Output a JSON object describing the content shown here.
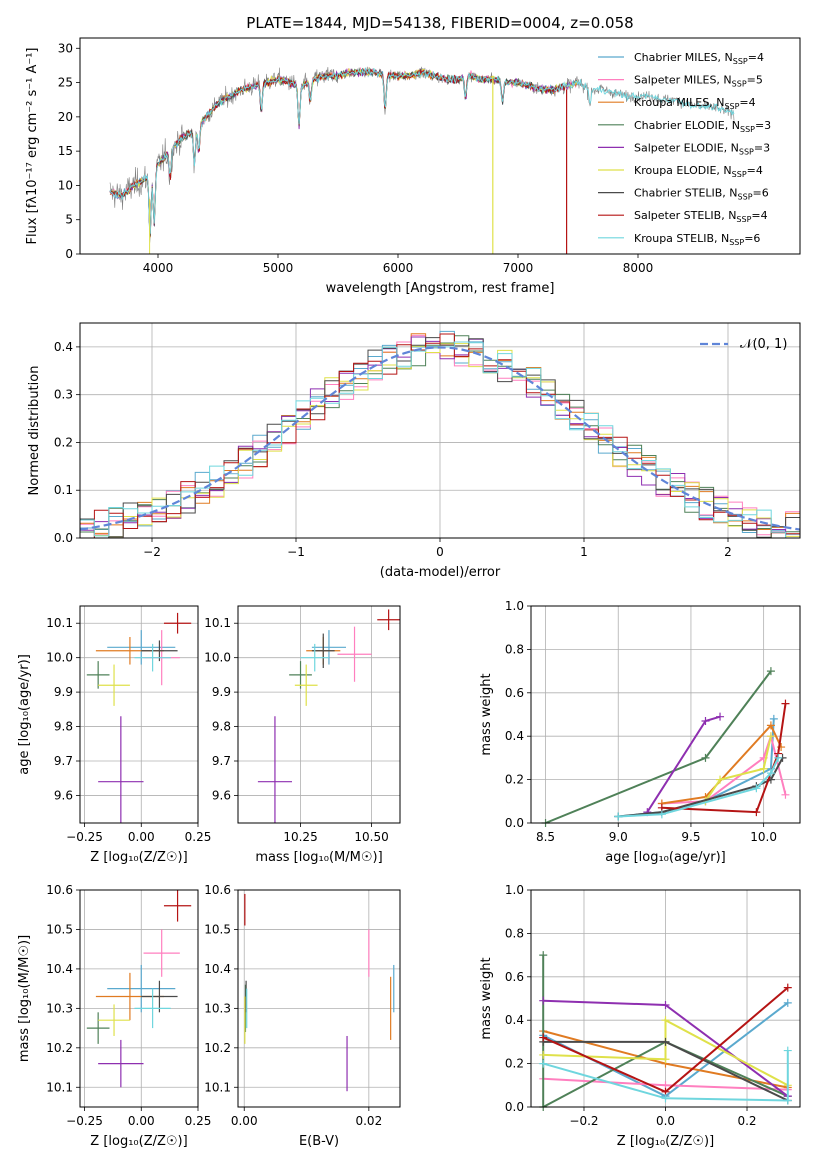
{
  "colors": {
    "chabrier_miles": "#5aa9ce",
    "salpeter_miles": "#ff7fbf",
    "kroupa_miles": "#e07b22",
    "chabrier_elodie": "#4f8158",
    "salpeter_elodie": "#8e2fb0",
    "kroupa_elodie": "#dfe14a",
    "chabrier_stelib": "#4a4a4a",
    "salpeter_stelib": "#b51414",
    "kroupa_stelib": "#6fd6de",
    "spectrum_grey": "#808080",
    "normal_curve": "#5f85d8",
    "grid": "#b0b0b0"
  },
  "chart_data": [
    {
      "id": "spectrum",
      "type": "line",
      "title": "PLATE=1844, MJD=54138, FIBERID=0004, z=0.058",
      "xlabel": "wavelength [Angstrom, rest frame]",
      "ylabel": "Flux [fλ10⁻¹⁷ erg cm⁻² s⁻¹ A⁻¹]",
      "xlim": [
        3350,
        9350
      ],
      "ylim": [
        0,
        31.5
      ],
      "xticks": [
        "4000",
        "5000",
        "6000",
        "7000",
        "8000"
      ],
      "yticks": [
        "0",
        "5",
        "10",
        "15",
        "20",
        "25",
        "30"
      ],
      "legend_position": "top-right",
      "legend": [
        {
          "label": "Chabrier MILES, N",
          "sub": "SSP",
          "suffix": "=4",
          "color_key": "chabrier_miles"
        },
        {
          "label": "Salpeter MILES, N",
          "sub": "SSP",
          "suffix": "=5",
          "color_key": "salpeter_miles"
        },
        {
          "label": "Kroupa MILES, N",
          "sub": "SSP",
          "suffix": "=4",
          "color_key": "kroupa_miles"
        },
        {
          "label": "Chabrier ELODIE, N",
          "sub": "SSP",
          "suffix": "=3",
          "color_key": "chabrier_elodie"
        },
        {
          "label": "Salpeter ELODIE, N",
          "sub": "SSP",
          "suffix": "=3",
          "color_key": "salpeter_elodie"
        },
        {
          "label": "Kroupa ELODIE, N",
          "sub": "SSP",
          "suffix": "=4",
          "color_key": "kroupa_elodie"
        },
        {
          "label": "Chabrier STELIB, N",
          "sub": "SSP",
          "suffix": "=6",
          "color_key": "chabrier_stelib"
        },
        {
          "label": "Salpeter STELIB, N",
          "sub": "SSP",
          "suffix": "=4",
          "color_key": "salpeter_stelib"
        },
        {
          "label": "Kroupa STELIB, N",
          "sub": "SSP",
          "suffix": "=6",
          "color_key": "kroupa_stelib"
        }
      ],
      "continuum": [
        [
          3600,
          9
        ],
        [
          3700,
          8.5
        ],
        [
          3800,
          10
        ],
        [
          3900,
          11
        ],
        [
          4000,
          13
        ],
        [
          4100,
          15
        ],
        [
          4200,
          17
        ],
        [
          4300,
          18
        ],
        [
          4400,
          20
        ],
        [
          4500,
          22
        ],
        [
          4600,
          23
        ],
        [
          4700,
          24
        ],
        [
          4800,
          24.5
        ],
        [
          4900,
          25
        ],
        [
          5000,
          25.5
        ],
        [
          5100,
          25
        ],
        [
          5200,
          24.5
        ],
        [
          5300,
          25.5
        ],
        [
          5400,
          26
        ],
        [
          5500,
          26
        ],
        [
          5600,
          26.5
        ],
        [
          5700,
          26.5
        ],
        [
          5800,
          26.5
        ],
        [
          5900,
          26
        ],
        [
          6000,
          26
        ],
        [
          6100,
          26
        ],
        [
          6200,
          26.5
        ],
        [
          6300,
          26
        ],
        [
          6400,
          25.5
        ],
        [
          6500,
          25.5
        ],
        [
          6600,
          26
        ],
        [
          6700,
          25.5
        ],
        [
          6800,
          25.5
        ],
        [
          6900,
          25
        ],
        [
          7000,
          25
        ],
        [
          7100,
          24.5
        ],
        [
          7200,
          24
        ],
        [
          7300,
          24
        ],
        [
          7400,
          24.5
        ],
        [
          7500,
          25
        ],
        [
          7600,
          24
        ],
        [
          7700,
          24
        ],
        [
          7800,
          23.5
        ],
        [
          7900,
          23
        ],
        [
          8000,
          23
        ],
        [
          8100,
          23
        ],
        [
          8200,
          22.5
        ],
        [
          8300,
          22.5
        ],
        [
          8400,
          22
        ],
        [
          8500,
          21.5
        ],
        [
          8600,
          21.5
        ],
        [
          8700,
          21
        ],
        [
          8800,
          20.5
        ]
      ]
    },
    {
      "id": "residuals",
      "type": "line",
      "xlabel": "(data-model)/error",
      "ylabel": "Normed distribution",
      "xlim": [
        -2.5,
        2.5
      ],
      "ylim": [
        0,
        0.45
      ],
      "xticks": [
        "−2",
        "−1",
        "0",
        "1",
        "2"
      ],
      "yticks": [
        "0.0",
        "0.1",
        "0.2",
        "0.3",
        "0.4"
      ],
      "grid": true,
      "legend_position": "top-right",
      "legend": [
        {
          "label": "𝒩(0, 1)",
          "color_key": "normal_curve",
          "style": "dashed"
        }
      ],
      "bin_width": 0.1
    },
    {
      "id": "age_vs_Z",
      "type": "scatter",
      "xlabel": "Z [log₁₀(Z/Z☉)]",
      "ylabel": "age  [log₁₀(age/yr)]",
      "xlim": [
        -0.27,
        0.25
      ],
      "ylim": [
        9.52,
        10.15
      ],
      "xticks": [
        "−0.25",
        "0.00",
        "0.25"
      ],
      "yticks": [
        "9.6",
        "9.7",
        "9.8",
        "9.9",
        "10.0",
        "10.1"
      ],
      "grid": true,
      "points": [
        {
          "series": "chabrier_miles",
          "x": 0.0,
          "xerr": 0.15,
          "y": 10.03,
          "yerr": 0.05
        },
        {
          "series": "salpeter_miles",
          "x": 0.09,
          "xerr": 0.08,
          "y": 10.0,
          "yerr": 0.08
        },
        {
          "series": "kroupa_miles",
          "x": -0.05,
          "xerr": 0.15,
          "y": 10.02,
          "yerr": 0.04
        },
        {
          "series": "chabrier_elodie",
          "x": -0.19,
          "xerr": 0.05,
          "y": 9.95,
          "yerr": 0.04
        },
        {
          "series": "salpeter_elodie",
          "x": -0.09,
          "xerr": 0.1,
          "y": 9.64,
          "yerr": 0.19
        },
        {
          "series": "kroupa_elodie",
          "x": -0.12,
          "xerr": 0.07,
          "y": 9.92,
          "yerr": 0.06
        },
        {
          "series": "chabrier_stelib",
          "x": 0.08,
          "xerr": 0.08,
          "y": 10.02,
          "yerr": 0.03
        },
        {
          "series": "salpeter_stelib",
          "x": 0.16,
          "xerr": 0.06,
          "y": 10.1,
          "yerr": 0.03
        },
        {
          "series": "kroupa_stelib",
          "x": 0.05,
          "xerr": 0.08,
          "y": 10.0,
          "yerr": 0.04
        }
      ]
    },
    {
      "id": "age_vs_mass",
      "type": "scatter",
      "xlabel": "mass [log₁₀(M/M☉)]",
      "ylabel": "",
      "xlim": [
        10.03,
        10.6
      ],
      "ylim": [
        9.52,
        10.15
      ],
      "xticks": [
        "10.25",
        "10.50"
      ],
      "yticks": [
        "9.6",
        "9.7",
        "9.8",
        "9.9",
        "10.0",
        "10.1"
      ],
      "grid": true,
      "points": [
        {
          "series": "chabrier_miles",
          "x": 10.35,
          "xerr": 0.06,
          "y": 10.03,
          "yerr": 0.05
        },
        {
          "series": "salpeter_miles",
          "x": 10.44,
          "xerr": 0.06,
          "y": 10.01,
          "yerr": 0.08
        },
        {
          "series": "kroupa_miles",
          "x": 10.33,
          "xerr": 0.06,
          "y": 10.02,
          "yerr": 0.04
        },
        {
          "series": "chabrier_elodie",
          "x": 10.25,
          "xerr": 0.04,
          "y": 9.95,
          "yerr": 0.04
        },
        {
          "series": "salpeter_elodie",
          "x": 10.16,
          "xerr": 0.06,
          "y": 9.64,
          "yerr": 0.19
        },
        {
          "series": "kroupa_elodie",
          "x": 10.27,
          "xerr": 0.04,
          "y": 9.92,
          "yerr": 0.06
        },
        {
          "series": "chabrier_stelib",
          "x": 10.33,
          "xerr": 0.04,
          "y": 10.02,
          "yerr": 0.05
        },
        {
          "series": "salpeter_stelib",
          "x": 10.56,
          "xerr": 0.04,
          "y": 10.11,
          "yerr": 0.03
        },
        {
          "series": "kroupa_stelib",
          "x": 10.3,
          "xerr": 0.05,
          "y": 10.0,
          "yerr": 0.04
        }
      ]
    },
    {
      "id": "mass_weight_vs_age",
      "type": "line",
      "xlabel": "age  [log₁₀(age/yr)]",
      "ylabel": "mass weight",
      "xlim": [
        8.4,
        10.25
      ],
      "ylim": [
        0,
        1.0
      ],
      "xticks": [
        "8.5",
        "9.0",
        "9.5",
        "10.0"
      ],
      "yticks": [
        "0.0",
        "0.2",
        "0.4",
        "0.6",
        "0.8",
        "1.0"
      ],
      "grid": true,
      "series": [
        {
          "key": "chabrier_miles",
          "x": [
            9.0,
            9.3,
            9.6,
            10.05,
            10.07
          ],
          "y": [
            0.03,
            0.05,
            0.1,
            0.25,
            0.48
          ]
        },
        {
          "key": "salpeter_miles",
          "x": [
            9.3,
            9.6,
            10.0,
            10.05,
            10.15
          ],
          "y": [
            0.09,
            0.1,
            0.3,
            0.4,
            0.13
          ]
        },
        {
          "key": "kroupa_miles",
          "x": [
            9.3,
            9.6,
            10.05,
            10.12
          ],
          "y": [
            0.09,
            0.12,
            0.45,
            0.35
          ]
        },
        {
          "key": "chabrier_elodie",
          "x": [
            8.5,
            9.6,
            10.05
          ],
          "y": [
            0.0,
            0.3,
            0.7
          ]
        },
        {
          "key": "salpeter_elodie",
          "x": [
            9.2,
            9.6,
            9.7
          ],
          "y": [
            0.05,
            0.47,
            0.49
          ]
        },
        {
          "key": "kroupa_elodie",
          "x": [
            9.6,
            9.7,
            10.0,
            10.05
          ],
          "y": [
            0.1,
            0.2,
            0.25,
            0.4
          ]
        },
        {
          "key": "chabrier_stelib",
          "x": [
            9.0,
            9.3,
            9.95,
            10.05,
            10.13
          ],
          "y": [
            0.03,
            0.05,
            0.17,
            0.2,
            0.3
          ]
        },
        {
          "key": "salpeter_stelib",
          "x": [
            9.3,
            9.95,
            10.1,
            10.15
          ],
          "y": [
            0.07,
            0.05,
            0.32,
            0.55
          ]
        },
        {
          "key": "kroupa_stelib",
          "x": [
            9.0,
            9.3,
            9.95,
            10.05,
            10.1
          ],
          "y": [
            0.03,
            0.04,
            0.16,
            0.23,
            0.3
          ]
        }
      ]
    },
    {
      "id": "mass_vs_Z",
      "type": "scatter",
      "xlabel": "Z [log₁₀(Z/Z☉)]",
      "ylabel": "mass [log₁₀(M/M☉)]",
      "xlim": [
        -0.27,
        0.25
      ],
      "ylim": [
        10.05,
        10.6
      ],
      "xticks": [
        "−0.25",
        "0.00",
        "0.25"
      ],
      "yticks": [
        "10.1",
        "10.2",
        "10.3",
        "10.4",
        "10.5",
        "10.6"
      ],
      "grid": true,
      "points": [
        {
          "series": "chabrier_miles",
          "x": 0.0,
          "xerr": 0.15,
          "y": 10.35,
          "yerr": 0.06
        },
        {
          "series": "salpeter_miles",
          "x": 0.09,
          "xerr": 0.08,
          "y": 10.44,
          "yerr": 0.06
        },
        {
          "series": "kroupa_miles",
          "x": -0.05,
          "xerr": 0.15,
          "y": 10.33,
          "yerr": 0.06
        },
        {
          "series": "chabrier_elodie",
          "x": -0.19,
          "xerr": 0.05,
          "y": 10.25,
          "yerr": 0.04
        },
        {
          "series": "salpeter_elodie",
          "x": -0.09,
          "xerr": 0.1,
          "y": 10.16,
          "yerr": 0.06
        },
        {
          "series": "kroupa_elodie",
          "x": -0.12,
          "xerr": 0.07,
          "y": 10.27,
          "yerr": 0.04
        },
        {
          "series": "chabrier_stelib",
          "x": 0.08,
          "xerr": 0.08,
          "y": 10.33,
          "yerr": 0.04
        },
        {
          "series": "salpeter_stelib",
          "x": 0.16,
          "xerr": 0.06,
          "y": 10.56,
          "yerr": 0.04
        },
        {
          "series": "kroupa_stelib",
          "x": 0.05,
          "xerr": 0.08,
          "y": 10.3,
          "yerr": 0.05
        }
      ]
    },
    {
      "id": "mass_vs_ebv",
      "type": "scatter",
      "xlabel": "E(B-V)",
      "ylabel": "",
      "xlim": [
        -0.001,
        0.025
      ],
      "ylim": [
        10.05,
        10.6
      ],
      "xticks": [
        "0.00",
        "0.02"
      ],
      "yticks": [
        "10.1",
        "10.2",
        "10.3",
        "10.4",
        "10.5",
        "10.6"
      ],
      "grid": true,
      "points": [
        {
          "series": "chabrier_miles",
          "x": 0.024,
          "xerr": 0,
          "y": 10.35,
          "yerr": 0.06
        },
        {
          "series": "salpeter_miles",
          "x": 0.02,
          "xerr": 0,
          "y": 10.44,
          "yerr": 0.06
        },
        {
          "series": "kroupa_miles",
          "x": 0.0235,
          "xerr": 0,
          "y": 10.3,
          "yerr": 0.08
        },
        {
          "series": "chabrier_elodie",
          "x": 0.0002,
          "xerr": 0,
          "y": 10.3,
          "yerr": 0.06
        },
        {
          "series": "salpeter_elodie",
          "x": 0.0165,
          "xerr": 0,
          "y": 10.16,
          "yerr": 0.07
        },
        {
          "series": "kroupa_elodie",
          "x": 0.0001,
          "xerr": 0,
          "y": 10.27,
          "yerr": 0.06
        },
        {
          "series": "chabrier_stelib",
          "x": 0.0003,
          "xerr": 0,
          "y": 10.33,
          "yerr": 0.04
        },
        {
          "series": "salpeter_stelib",
          "x": 0.0001,
          "xerr": 0,
          "y": 10.55,
          "yerr": 0.04
        },
        {
          "series": "kroupa_stelib",
          "x": 0.0004,
          "xerr": 0,
          "y": 10.3,
          "yerr": 0.05
        }
      ]
    },
    {
      "id": "mass_weight_vs_Z",
      "type": "line",
      "xlabel": "Z [log₁₀(Z/Z☉)]",
      "ylabel": "mass weight",
      "xlim": [
        -0.33,
        0.33
      ],
      "ylim": [
        0,
        1.0
      ],
      "xticks": [
        "−0.2",
        "0.0",
        "0.2"
      ],
      "yticks": [
        "0.0",
        "0.2",
        "0.4",
        "0.6",
        "0.8",
        "1.0"
      ],
      "grid": true,
      "series": [
        {
          "key": "chabrier_miles",
          "x": [
            -0.3,
            0.0,
            0.3
          ],
          "y": [
            0.33,
            0.05,
            0.48
          ]
        },
        {
          "key": "salpeter_miles",
          "x": [
            -0.3,
            0.0,
            0.3
          ],
          "y": [
            0.13,
            0.1,
            0.08
          ]
        },
        {
          "key": "kroupa_miles",
          "x": [
            -0.3,
            0.0,
            0.3
          ],
          "y": [
            0.35,
            0.2,
            0.09
          ]
        },
        {
          "key": "chabrier_elodie",
          "x": [
            -0.3,
            -0.3,
            0.0,
            0.3
          ],
          "y": [
            0.7,
            0.0,
            0.3,
            0.05
          ]
        },
        {
          "key": "salpeter_elodie",
          "x": [
            -0.3,
            0.0,
            0.3
          ],
          "y": [
            0.49,
            0.47,
            0.05
          ]
        },
        {
          "key": "kroupa_elodie",
          "x": [
            -0.3,
            0.0,
            0.0,
            0.3
          ],
          "y": [
            0.24,
            0.22,
            0.4,
            0.1
          ]
        },
        {
          "key": "chabrier_stelib",
          "x": [
            -0.3,
            0.0,
            0.3
          ],
          "y": [
            0.3,
            0.3,
            0.03
          ]
        },
        {
          "key": "salpeter_stelib",
          "x": [
            -0.3,
            0.0,
            0.3
          ],
          "y": [
            0.32,
            0.07,
            0.55
          ]
        },
        {
          "key": "kroupa_stelib",
          "x": [
            -0.3,
            0.0,
            0.3,
            0.3
          ],
          "y": [
            0.2,
            0.04,
            0.03,
            0.26
          ]
        }
      ]
    }
  ]
}
